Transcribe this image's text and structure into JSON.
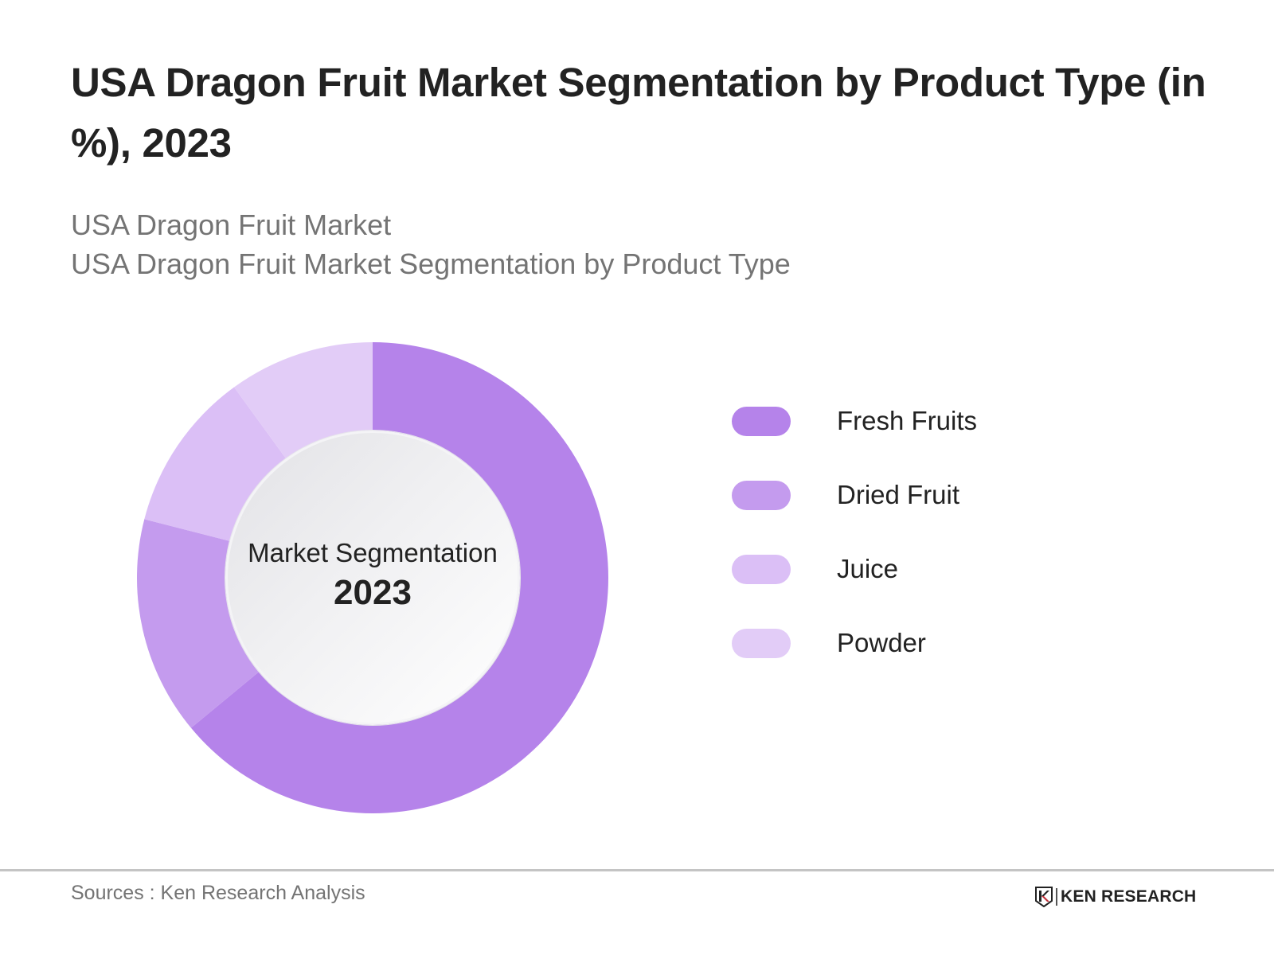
{
  "header": {
    "title": "USA Dragon Fruit Market Segmentation by Product Type (in %), 2023",
    "subtitle_line1": "USA Dragon Fruit Market",
    "subtitle_line2": "USA Dragon Fruit Market Segmentation by Product Type"
  },
  "center": {
    "label": "Market Segmentation",
    "year": "2023"
  },
  "legend": [
    {
      "label": "Fresh Fruits",
      "color": "#b583ea"
    },
    {
      "label": "Dried Fruit",
      "color": "#c49bee"
    },
    {
      "label": "Juice",
      "color": "#dbbff6"
    },
    {
      "label": "Powder",
      "color": "#e2ccf7"
    }
  ],
  "footer": {
    "source": "Sources : Ken Research Analysis",
    "logo_text": "KEN RESEARCH",
    "logo_icon": "ken-research-shield-k-icon"
  },
  "chart_data": {
    "type": "pie",
    "variant": "donut",
    "title": "USA Dragon Fruit Market Segmentation by Product Type (in %), 2023",
    "subtitle": "USA Dragon Fruit Market / USA Dragon Fruit Market Segmentation by Product Type",
    "center_text": "Market Segmentation 2023",
    "categories": [
      "Fresh Fruits",
      "Dried Fruit",
      "Juice",
      "Powder"
    ],
    "values": [
      64,
      15,
      11,
      10
    ],
    "unit": "%",
    "colors": [
      "#b583ea",
      "#c49bee",
      "#dbbff6",
      "#e2ccf7"
    ],
    "start_angle": "12 o'clock, clockwise",
    "legend_position": "right",
    "data_labels": false,
    "note": "Values estimated from slice angles; no data labels shown"
  }
}
